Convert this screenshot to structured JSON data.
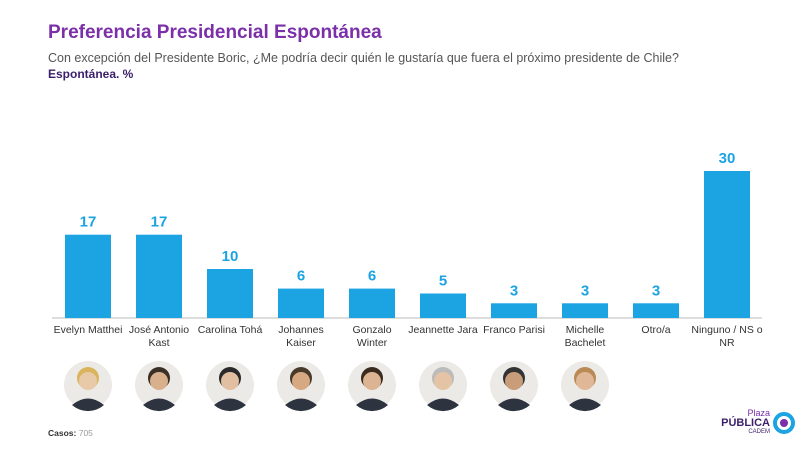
{
  "chart_data": {
    "type": "bar",
    "title": "Preferencia Presidencial Espontánea",
    "subtitle": "Con excepción del Presidente Boric, ¿Me podría decir quién le gustaría que fuera el próximo presidente de Chile?",
    "measure": "Espontánea. %",
    "categories": [
      "Evelyn Matthei",
      "José Antonio Kast",
      "Carolina Tohá",
      "Johannes Kaiser",
      "Gonzalo Winter",
      "Jeannette Jara",
      "Franco Parisi",
      "Michelle Bachelet",
      "Otro/a",
      "Ninguno / NS o NR"
    ],
    "values": [
      17,
      17,
      10,
      6,
      6,
      5,
      3,
      3,
      3,
      30
    ],
    "color": "#1ba3e2"
  },
  "footer": {
    "label": "Casos:",
    "value": "705"
  },
  "logo": {
    "top": "Plaza",
    "main": "PÚBLICA",
    "sub": "CADEM"
  }
}
